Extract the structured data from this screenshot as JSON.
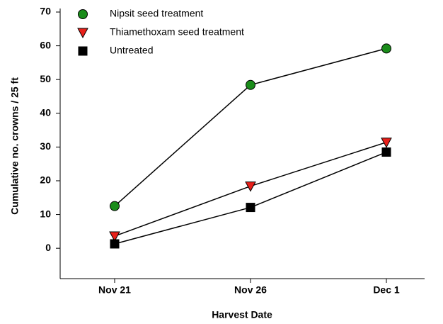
{
  "chart_data": {
    "type": "line",
    "xlabel": "Harvest Date",
    "ylabel": "Cumulative no. crowns / 25 ft",
    "categories": [
      "Nov 21",
      "Nov 26",
      "Dec 1"
    ],
    "series": [
      {
        "name": "Nipsit seed treatment",
        "color": "#1a8c1a",
        "marker": "circle",
        "values": [
          12.5,
          48.4,
          59.2
        ]
      },
      {
        "name": "Thiamethoxam seed treatment",
        "color": "#e8201a",
        "marker": "triangle-down",
        "values": [
          3.6,
          18.4,
          31.4
        ]
      },
      {
        "name": "Untreated",
        "color": "#000000",
        "marker": "square",
        "values": [
          1.3,
          12.1,
          28.5
        ]
      }
    ],
    "ylim": [
      -9,
      70
    ],
    "yticks": [
      0,
      10,
      20,
      30,
      40,
      50,
      60,
      70
    ],
    "legend": "upper left"
  }
}
